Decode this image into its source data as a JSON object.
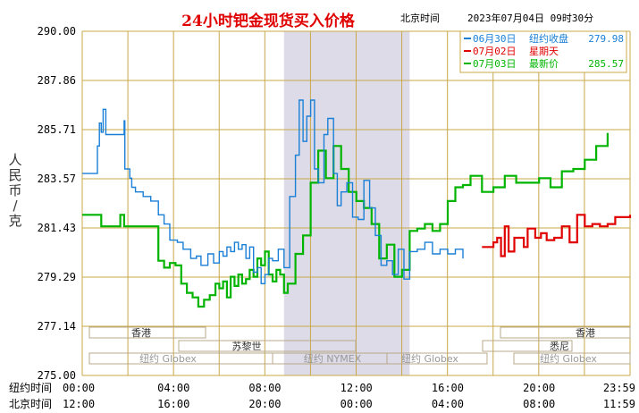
{
  "header": {
    "title": "24小时钯金现货买入价格",
    "tz": "北京时间",
    "datetime": "2023年07月04日 09时30分"
  },
  "y_axis_label": "人民币/克",
  "rows": {
    "ny": "纽约时间",
    "bj": "北京时间"
  },
  "markets": {
    "hk": "香港",
    "zurich": "苏黎世",
    "globex": "纽约 Globex",
    "nymex": "纽约 NYMEX",
    "sydney": "悉尼"
  },
  "colors": {
    "s1": "#1a7fd6",
    "s2": "#e00000",
    "s3": "#00b400",
    "grid": "#c8a84a",
    "shade": "#dddbe8"
  },
  "chart_data": {
    "type": "line",
    "title": "24小时钯金现货买入价格",
    "ylabel": "人民币/克",
    "ylim": [
      275.0,
      290.0
    ],
    "xlim": [
      0,
      1439
    ],
    "yticks": [
      "290.00",
      "287.86",
      "285.71",
      "283.57",
      "281.43",
      "279.29",
      "277.14",
      "275.00"
    ],
    "ny_ticks": [
      "00:00",
      "04:00",
      "08:00",
      "12:00",
      "16:00",
      "20:00",
      "23:59"
    ],
    "bj_ticks": [
      "12:00",
      "16:00",
      "20:00",
      "00:00",
      "04:00",
      "08:00",
      "11:59"
    ],
    "shade_range": [
      530,
      860
    ],
    "legend": [
      {
        "label": "06月30日",
        "field": "纽约收盘",
        "value": "279.98",
        "color": "#1a7fd6"
      },
      {
        "label": "07月02日",
        "field": "星期天",
        "value": "",
        "color": "#e00000"
      },
      {
        "label": "07月03日",
        "field": "最新价",
        "value": "285.57",
        "color": "#00b400"
      }
    ],
    "series": [
      {
        "name": "06月30日",
        "color": "#1a7fd6",
        "x": [
          0,
          35,
          40,
          45,
          50,
          55,
          62,
          70,
          90,
          110,
          112,
          125,
          130,
          140,
          160,
          180,
          200,
          215,
          230,
          250,
          265,
          285,
          300,
          312,
          330,
          345,
          360,
          370,
          380,
          390,
          400,
          410,
          420,
          430,
          440,
          450,
          460,
          470,
          480,
          490,
          500,
          515,
          530,
          545,
          560,
          570,
          580,
          590,
          600,
          610,
          620,
          635,
          645,
          660,
          670,
          680,
          695,
          710,
          725,
          740,
          755,
          770,
          785,
          800,
          815,
          830,
          845,
          860,
          880,
          900,
          920,
          940,
          960,
          980,
          1000
        ],
        "y": [
          283.8,
          283.8,
          285.0,
          286.0,
          285.6,
          286.6,
          285.5,
          285.5,
          285.5,
          286.1,
          284.0,
          283.6,
          283.2,
          283.0,
          282.8,
          282.6,
          282.0,
          281.6,
          280.9,
          280.8,
          280.5,
          280.1,
          280.2,
          279.8,
          280.3,
          279.9,
          280.4,
          280.2,
          280.6,
          280.4,
          280.8,
          280.5,
          280.7,
          280.1,
          280.6,
          279.5,
          279.7,
          279.0,
          279.4,
          280.1,
          280.0,
          280.5,
          279.7,
          282.8,
          284.6,
          287.0,
          285.2,
          286.3,
          287.0,
          284.0,
          283.4,
          285.5,
          286.2,
          283.8,
          282.4,
          283.0,
          283.4,
          281.9,
          281.8,
          283.5,
          282.3,
          281.1,
          279.8,
          280.0,
          279.4,
          280.5,
          279.2,
          280.4,
          280.5,
          280.8,
          280.3,
          280.5,
          280.3,
          280.5,
          280.1
        ]
      },
      {
        "name": "07月02日",
        "color": "#e00000",
        "x": [
          1050,
          1065,
          1080,
          1090,
          1100,
          1110,
          1120,
          1135,
          1150,
          1160,
          1170,
          1190,
          1205,
          1220,
          1240,
          1260,
          1280,
          1300,
          1320,
          1340,
          1360,
          1380,
          1400,
          1420,
          1439
        ],
        "y": [
          280.6,
          280.6,
          280.8,
          281.0,
          280.2,
          281.5,
          280.4,
          281.0,
          281.0,
          280.6,
          281.4,
          281.0,
          281.2,
          280.9,
          281.0,
          281.5,
          280.8,
          282.0,
          281.5,
          281.6,
          281.5,
          281.6,
          281.9,
          281.9,
          282.0
        ]
      },
      {
        "name": "07月03日",
        "color": "#00b400",
        "x": [
          0,
          10,
          30,
          50,
          70,
          90,
          100,
          110,
          125,
          140,
          155,
          170,
          180,
          190,
          200,
          215,
          230,
          245,
          260,
          275,
          290,
          305,
          320,
          335,
          350,
          360,
          370,
          380,
          390,
          400,
          410,
          420,
          430,
          440,
          450,
          460,
          470,
          480,
          490,
          500,
          510,
          520,
          530,
          540,
          560,
          580,
          600,
          620,
          640,
          660,
          680,
          700,
          720,
          740,
          760,
          780,
          800,
          820,
          840,
          860,
          880,
          900,
          920,
          940,
          960,
          980,
          1000,
          1020,
          1050,
          1080,
          1110,
          1140,
          1170,
          1200,
          1230,
          1260,
          1290,
          1320,
          1350,
          1380
        ],
        "y": [
          282.0,
          282.0,
          282.0,
          281.5,
          281.5,
          281.5,
          282.0,
          281.5,
          281.5,
          281.5,
          281.5,
          281.5,
          281.5,
          281.5,
          280.0,
          279.7,
          279.9,
          279.8,
          279.0,
          278.6,
          278.4,
          278.0,
          278.3,
          278.5,
          279.0,
          278.8,
          279.1,
          278.4,
          279.3,
          278.9,
          279.4,
          279.0,
          279.2,
          279.6,
          279.3,
          280.1,
          279.8,
          280.4,
          279.4,
          279.1,
          279.6,
          279.4,
          278.6,
          279.0,
          280.3,
          281.1,
          283.4,
          284.8,
          283.6,
          285.0,
          284.0,
          283.0,
          282.6,
          282.3,
          281.6,
          280.1,
          280.7,
          279.3,
          279.6,
          281.3,
          281.4,
          281.6,
          281.3,
          281.6,
          282.6,
          283.2,
          283.3,
          283.7,
          283.0,
          283.2,
          283.7,
          283.4,
          283.4,
          283.6,
          283.2,
          283.9,
          284.0,
          284.4,
          285.0,
          285.57
        ]
      }
    ]
  }
}
